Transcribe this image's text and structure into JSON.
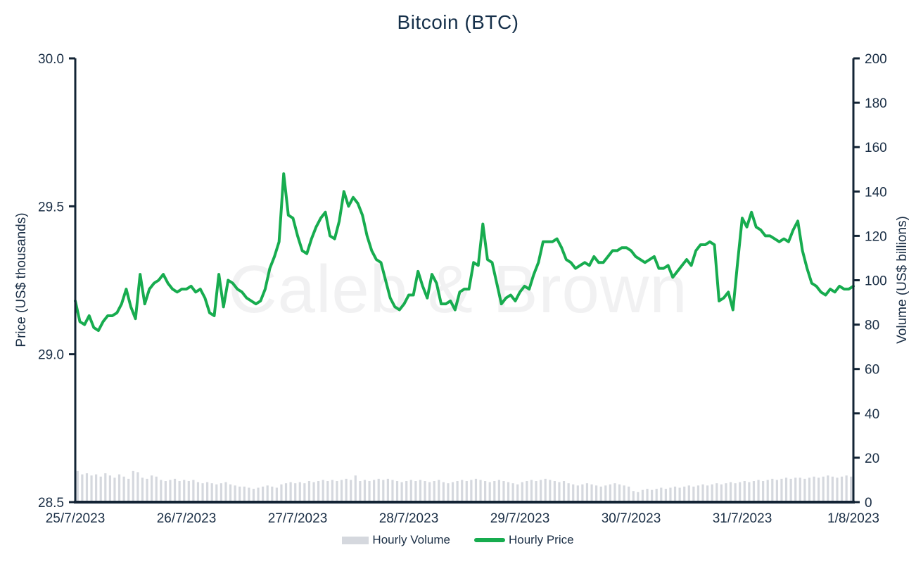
{
  "title": "Bitcoin (BTC)",
  "watermark": "Caleb & Brown",
  "colors": {
    "price_green": "#17ac4f",
    "volume_gray": "#d5d8de",
    "text_navy": "#1a2e45",
    "axis_line": "#132435",
    "watermark_gray": "#f1f1f2",
    "background": "#ffffff"
  },
  "legend": [
    {
      "label": "Hourly Volume",
      "swatch": "bar-icon",
      "color": "#d5d8de"
    },
    {
      "label": "Hourly Price",
      "swatch": "line-icon",
      "color": "#17ac4f"
    }
  ],
  "chart_data": {
    "type": "line+bar",
    "title": "Bitcoin (BTC)",
    "x_tick_labels": [
      "25/7/2023",
      "26/7/2023",
      "27/7/2023",
      "28/7/2023",
      "29/7/2023",
      "30/7/2023",
      "31/7/2023",
      "1/8/2023"
    ],
    "x_unit": "hours",
    "x_total_hours": 168,
    "grid": false,
    "legend_position": "bottom",
    "y_left": {
      "label": "Price (US$ thousands)",
      "tick_labels": [
        "30.0",
        "29.5",
        "29.0",
        "28.5"
      ],
      "min": 28.5,
      "max": 30.0
    },
    "y_right": {
      "label": "Volume (US$ billions)",
      "tick_labels": [
        "200",
        "180",
        "160",
        "140",
        "120",
        "100",
        "80",
        "60",
        "40",
        "20",
        "0"
      ],
      "min": 0,
      "max": 200
    },
    "series": [
      {
        "name": "Hourly Price",
        "type": "line",
        "axis": "left",
        "color": "#17ac4f",
        "values": [
          29.18,
          29.11,
          29.1,
          29.13,
          29.09,
          29.08,
          29.11,
          29.13,
          29.13,
          29.14,
          29.17,
          29.22,
          29.16,
          29.12,
          29.27,
          29.17,
          29.22,
          29.24,
          29.25,
          29.27,
          29.24,
          29.22,
          29.21,
          29.22,
          29.22,
          29.23,
          29.21,
          29.22,
          29.19,
          29.14,
          29.13,
          29.27,
          29.16,
          29.25,
          29.24,
          29.22,
          29.21,
          29.19,
          29.18,
          29.17,
          29.18,
          29.22,
          29.29,
          29.33,
          29.38,
          29.61,
          29.47,
          29.46,
          29.4,
          29.35,
          29.34,
          29.39,
          29.43,
          29.46,
          29.48,
          29.4,
          29.39,
          29.45,
          29.55,
          29.5,
          29.53,
          29.51,
          29.47,
          29.4,
          29.35,
          29.32,
          29.31,
          29.25,
          29.19,
          29.16,
          29.15,
          29.17,
          29.2,
          29.2,
          29.28,
          29.23,
          29.19,
          29.27,
          29.24,
          29.17,
          29.17,
          29.18,
          29.15,
          29.21,
          29.22,
          29.22,
          29.31,
          29.3,
          29.44,
          29.32,
          29.31,
          29.24,
          29.17,
          29.19,
          29.2,
          29.18,
          29.21,
          29.23,
          29.22,
          29.27,
          29.31,
          29.38,
          29.38,
          29.38,
          29.39,
          29.36,
          29.32,
          29.31,
          29.29,
          29.3,
          29.31,
          29.3,
          29.33,
          29.31,
          29.31,
          29.33,
          29.35,
          29.35,
          29.36,
          29.36,
          29.35,
          29.33,
          29.32,
          29.31,
          29.32,
          29.33,
          29.29,
          29.29,
          29.3,
          29.26,
          29.28,
          29.3,
          29.32,
          29.3,
          29.35,
          29.37,
          29.37,
          29.38,
          29.37,
          29.18,
          29.19,
          29.21,
          29.15,
          29.31,
          29.46,
          29.43,
          29.48,
          29.43,
          29.42,
          29.4,
          29.4,
          29.39,
          29.38,
          29.39,
          29.38,
          29.42,
          29.45,
          29.35,
          29.29,
          29.24,
          29.23,
          29.21,
          29.2,
          29.22,
          29.21,
          29.23,
          29.22,
          29.22,
          29.23
        ]
      },
      {
        "name": "Hourly Volume",
        "type": "bar",
        "axis": "right",
        "color": "#d5d8de",
        "values": [
          14,
          12.5,
          13,
          12,
          12.5,
          11.5,
          13,
          12,
          11,
          12.5,
          11.5,
          10.5,
          14,
          13.5,
          11,
          10.5,
          12,
          11.5,
          10,
          9.5,
          10,
          10.5,
          9.5,
          10,
          9.5,
          10,
          9,
          8.5,
          9,
          8.5,
          8,
          8.5,
          9,
          8,
          7.5,
          7,
          7,
          6.5,
          6,
          6.5,
          7,
          7.5,
          7,
          6.5,
          8,
          8.5,
          9,
          8.5,
          9,
          8.5,
          9.5,
          9,
          9.5,
          10,
          9.5,
          10,
          9.5,
          10,
          10.5,
          10,
          12,
          9.5,
          10,
          9.5,
          10,
          10.5,
          10,
          10.5,
          10,
          9.5,
          9,
          9.5,
          10,
          9.5,
          10,
          9.5,
          9,
          9.5,
          10,
          9,
          8.5,
          9,
          9.5,
          10,
          9.5,
          10,
          10.5,
          10,
          9.5,
          9,
          9.5,
          10,
          9.5,
          9,
          8.5,
          8,
          9,
          9.5,
          10,
          9.5,
          10,
          10.5,
          10,
          9.5,
          9,
          9.5,
          8.5,
          8,
          7.5,
          8,
          8.5,
          8,
          7.5,
          7,
          7.5,
          8,
          8.5,
          8,
          7.5,
          7,
          5,
          4.5,
          5.5,
          6,
          5.5,
          6,
          6.5,
          6,
          6.5,
          7,
          6.5,
          7,
          7.5,
          7,
          7.5,
          8,
          7.5,
          8,
          8.5,
          8,
          8.5,
          9,
          8.5,
          9,
          9.5,
          9,
          9.5,
          10,
          9.5,
          10,
          10.5,
          10,
          10.5,
          11,
          10.5,
          11,
          11,
          10.5,
          11,
          11.5,
          11,
          11.5,
          12,
          11.5,
          11,
          11.5,
          12,
          11.5
        ]
      }
    ]
  }
}
